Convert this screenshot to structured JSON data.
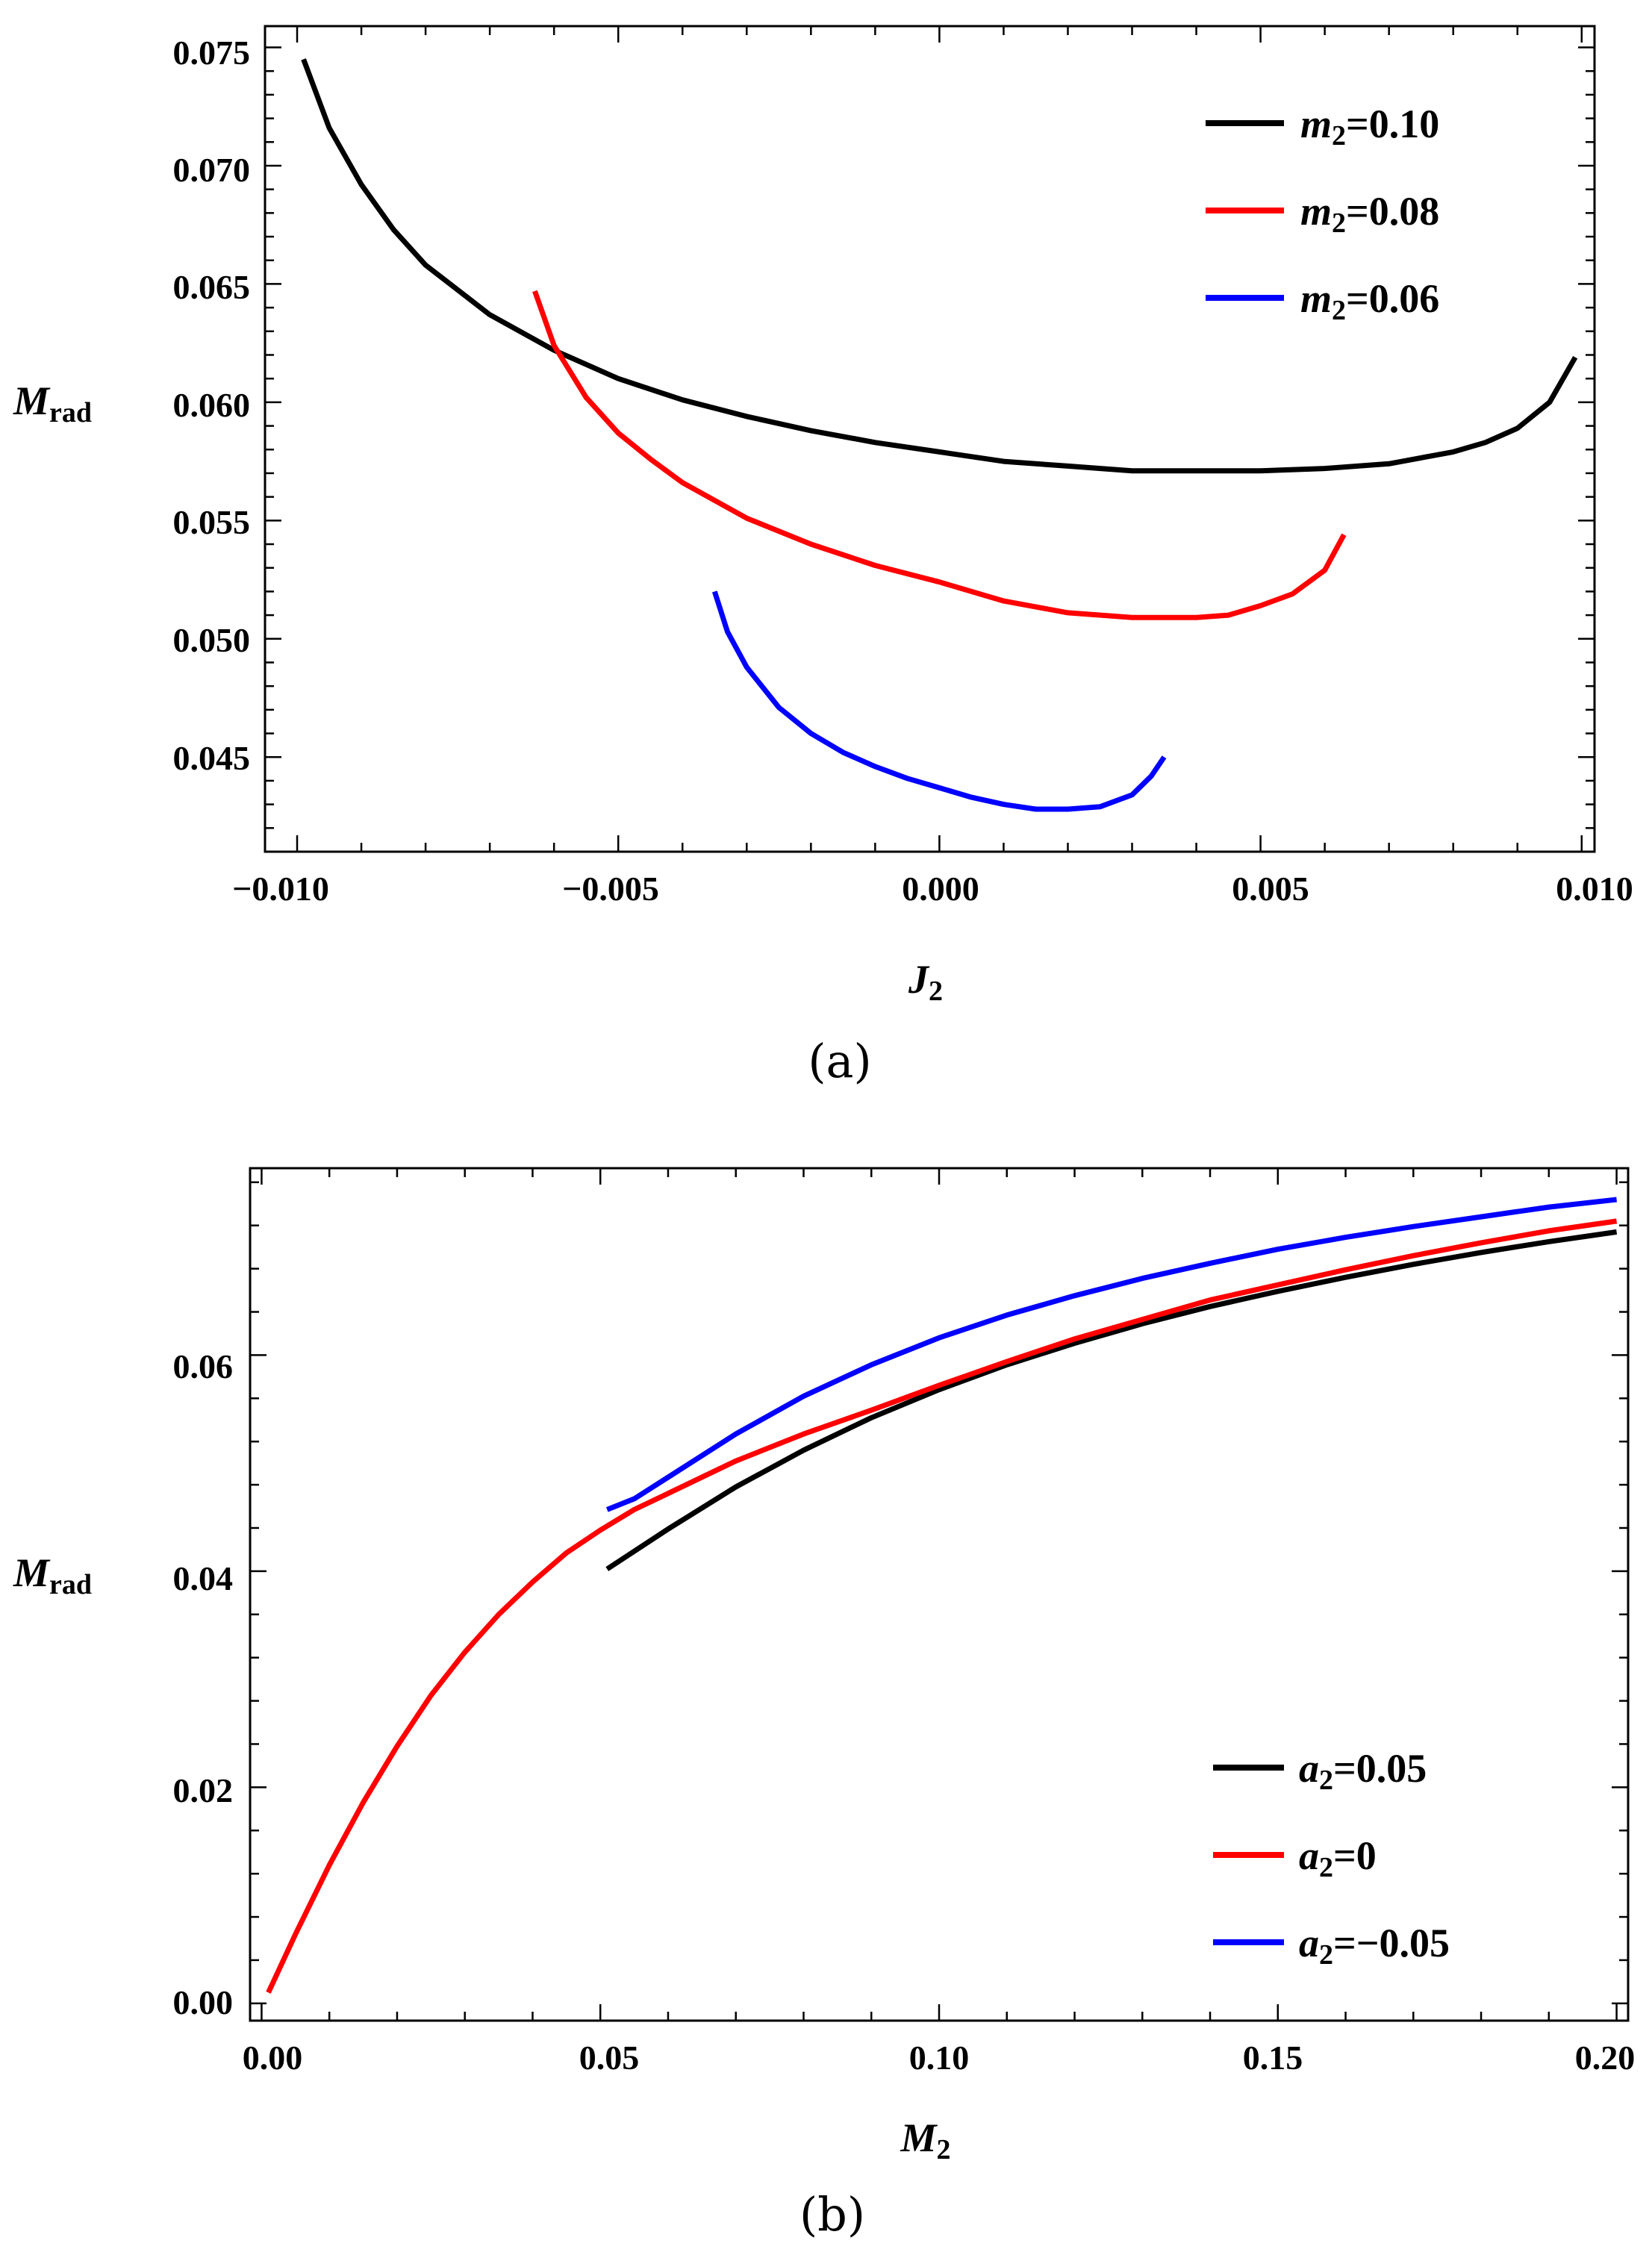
{
  "chart_data": [
    {
      "type": "line",
      "caption": "(a)",
      "xlabel": "J",
      "xlabel_sub": "2",
      "ylabel": "M",
      "ylabel_sub": "rad",
      "xlim": [
        -0.0105,
        0.0102
      ],
      "ylim": [
        0.041,
        0.0759
      ],
      "xticks": [
        -0.01,
        -0.005,
        0.0,
        0.005,
        0.01
      ],
      "xtick_labels": [
        "−0.010",
        "−0.005",
        "0.000",
        "0.005",
        "0.010"
      ],
      "yticks": [
        0.045,
        0.05,
        0.055,
        0.06,
        0.065,
        0.07,
        0.075
      ],
      "ytick_labels": [
        "0.045",
        "0.050",
        "0.055",
        "0.060",
        "0.065",
        "0.070",
        "0.075"
      ],
      "legend_position": "top-right",
      "series": [
        {
          "name": "m2=0.10",
          "legend_var": "m",
          "legend_sub": "2",
          "legend_value": "=0.10",
          "color": "#000000",
          "x": [
            -0.0099,
            -0.0095,
            -0.009,
            -0.0085,
            -0.008,
            -0.007,
            -0.006,
            -0.005,
            -0.004,
            -0.003,
            -0.002,
            -0.001,
            0.0,
            0.001,
            0.002,
            0.003,
            0.004,
            0.005,
            0.006,
            0.007,
            0.008,
            0.0085,
            0.009,
            0.0095,
            0.0099
          ],
          "y": [
            0.0745,
            0.0716,
            0.0692,
            0.0673,
            0.0658,
            0.0637,
            0.0622,
            0.061,
            0.0601,
            0.0594,
            0.0588,
            0.0583,
            0.0579,
            0.0575,
            0.0573,
            0.0571,
            0.0571,
            0.0571,
            0.0572,
            0.0574,
            0.0579,
            0.0583,
            0.0589,
            0.06,
            0.0619
          ]
        },
        {
          "name": "m2=0.08",
          "legend_var": "m",
          "legend_sub": "2",
          "legend_value": "=0.08",
          "color": "#ff0000",
          "x": [
            -0.0063,
            -0.006,
            -0.0055,
            -0.005,
            -0.0045,
            -0.004,
            -0.003,
            -0.002,
            -0.001,
            0.0,
            0.001,
            0.002,
            0.003,
            0.004,
            0.0045,
            0.005,
            0.0055,
            0.006,
            0.0063
          ],
          "y": [
            0.0647,
            0.0624,
            0.0602,
            0.0587,
            0.0576,
            0.0566,
            0.0551,
            0.054,
            0.0531,
            0.0524,
            0.0516,
            0.0511,
            0.0509,
            0.0509,
            0.051,
            0.0514,
            0.0519,
            0.0529,
            0.0544
          ]
        },
        {
          "name": "m2=0.06",
          "legend_var": "m",
          "legend_sub": "2",
          "legend_value": "=0.06",
          "color": "#0000ff",
          "x": [
            -0.0035,
            -0.0033,
            -0.003,
            -0.0025,
            -0.002,
            -0.0015,
            -0.001,
            -0.0005,
            0.0,
            0.0005,
            0.001,
            0.0015,
            0.002,
            0.0025,
            0.003,
            0.0033,
            0.0035
          ],
          "y": [
            0.052,
            0.0503,
            0.0488,
            0.0471,
            0.046,
            0.0452,
            0.0446,
            0.0441,
            0.0437,
            0.0433,
            0.043,
            0.0428,
            0.0428,
            0.0429,
            0.0434,
            0.0442,
            0.045
          ]
        }
      ]
    },
    {
      "type": "line",
      "caption": "(b)",
      "xlabel": "M",
      "xlabel_sub": "2",
      "ylabel": "M",
      "ylabel_sub": "rad",
      "xlim": [
        -0.0017,
        0.2017
      ],
      "ylim": [
        -0.0016,
        0.0773
      ],
      "xticks": [
        0.0,
        0.05,
        0.1,
        0.15,
        0.2
      ],
      "xtick_labels": [
        "0.00",
        "0.05",
        "0.10",
        "0.15",
        "0.20"
      ],
      "yticks": [
        0.0,
        0.02,
        0.04,
        0.06
      ],
      "ytick_labels": [
        "0.00",
        "0.02",
        "0.04",
        "0.06"
      ],
      "legend_position": "bottom-right",
      "series": [
        {
          "name": "a2=0.05",
          "legend_var": "a",
          "legend_sub": "2",
          "legend_value": "=0.05",
          "color": "#000000",
          "x": [
            0.051,
            0.06,
            0.07,
            0.08,
            0.09,
            0.1,
            0.11,
            0.12,
            0.13,
            0.14,
            0.15,
            0.16,
            0.17,
            0.18,
            0.19,
            0.2
          ],
          "y": [
            0.0402,
            0.0439,
            0.0478,
            0.0512,
            0.0542,
            0.0568,
            0.0591,
            0.0611,
            0.0629,
            0.0645,
            0.0659,
            0.0672,
            0.0684,
            0.0695,
            0.0705,
            0.0714
          ]
        },
        {
          "name": "a2=0",
          "legend_var": "a",
          "legend_sub": "2",
          "legend_value": "=0",
          "color": "#ff0000",
          "x": [
            0.001,
            0.005,
            0.01,
            0.015,
            0.02,
            0.025,
            0.03,
            0.035,
            0.04,
            0.045,
            0.05,
            0.055,
            0.06,
            0.07,
            0.08,
            0.09,
            0.1,
            0.11,
            0.12,
            0.13,
            0.14,
            0.15,
            0.16,
            0.17,
            0.18,
            0.19,
            0.2
          ],
          "y": [
            0.001,
            0.0064,
            0.0128,
            0.0186,
            0.0238,
            0.0285,
            0.0325,
            0.036,
            0.039,
            0.0417,
            0.0438,
            0.0457,
            0.0472,
            0.0502,
            0.0527,
            0.0549,
            0.0572,
            0.0594,
            0.0615,
            0.0633,
            0.0651,
            0.0665,
            0.0679,
            0.0692,
            0.0704,
            0.0715,
            0.0724
          ]
        },
        {
          "name": "a2=−0.05",
          "legend_var": "a",
          "legend_sub": "2",
          "legend_value": "=−0.05",
          "color": "#0000ff",
          "x": [
            0.051,
            0.055,
            0.06,
            0.07,
            0.08,
            0.09,
            0.1,
            0.11,
            0.12,
            0.13,
            0.14,
            0.15,
            0.16,
            0.17,
            0.18,
            0.19,
            0.2
          ],
          "y": [
            0.0457,
            0.0467,
            0.0487,
            0.0527,
            0.0562,
            0.0591,
            0.0616,
            0.0637,
            0.0655,
            0.0671,
            0.0685,
            0.0698,
            0.0709,
            0.0719,
            0.0728,
            0.0737,
            0.0744
          ]
        }
      ]
    }
  ]
}
